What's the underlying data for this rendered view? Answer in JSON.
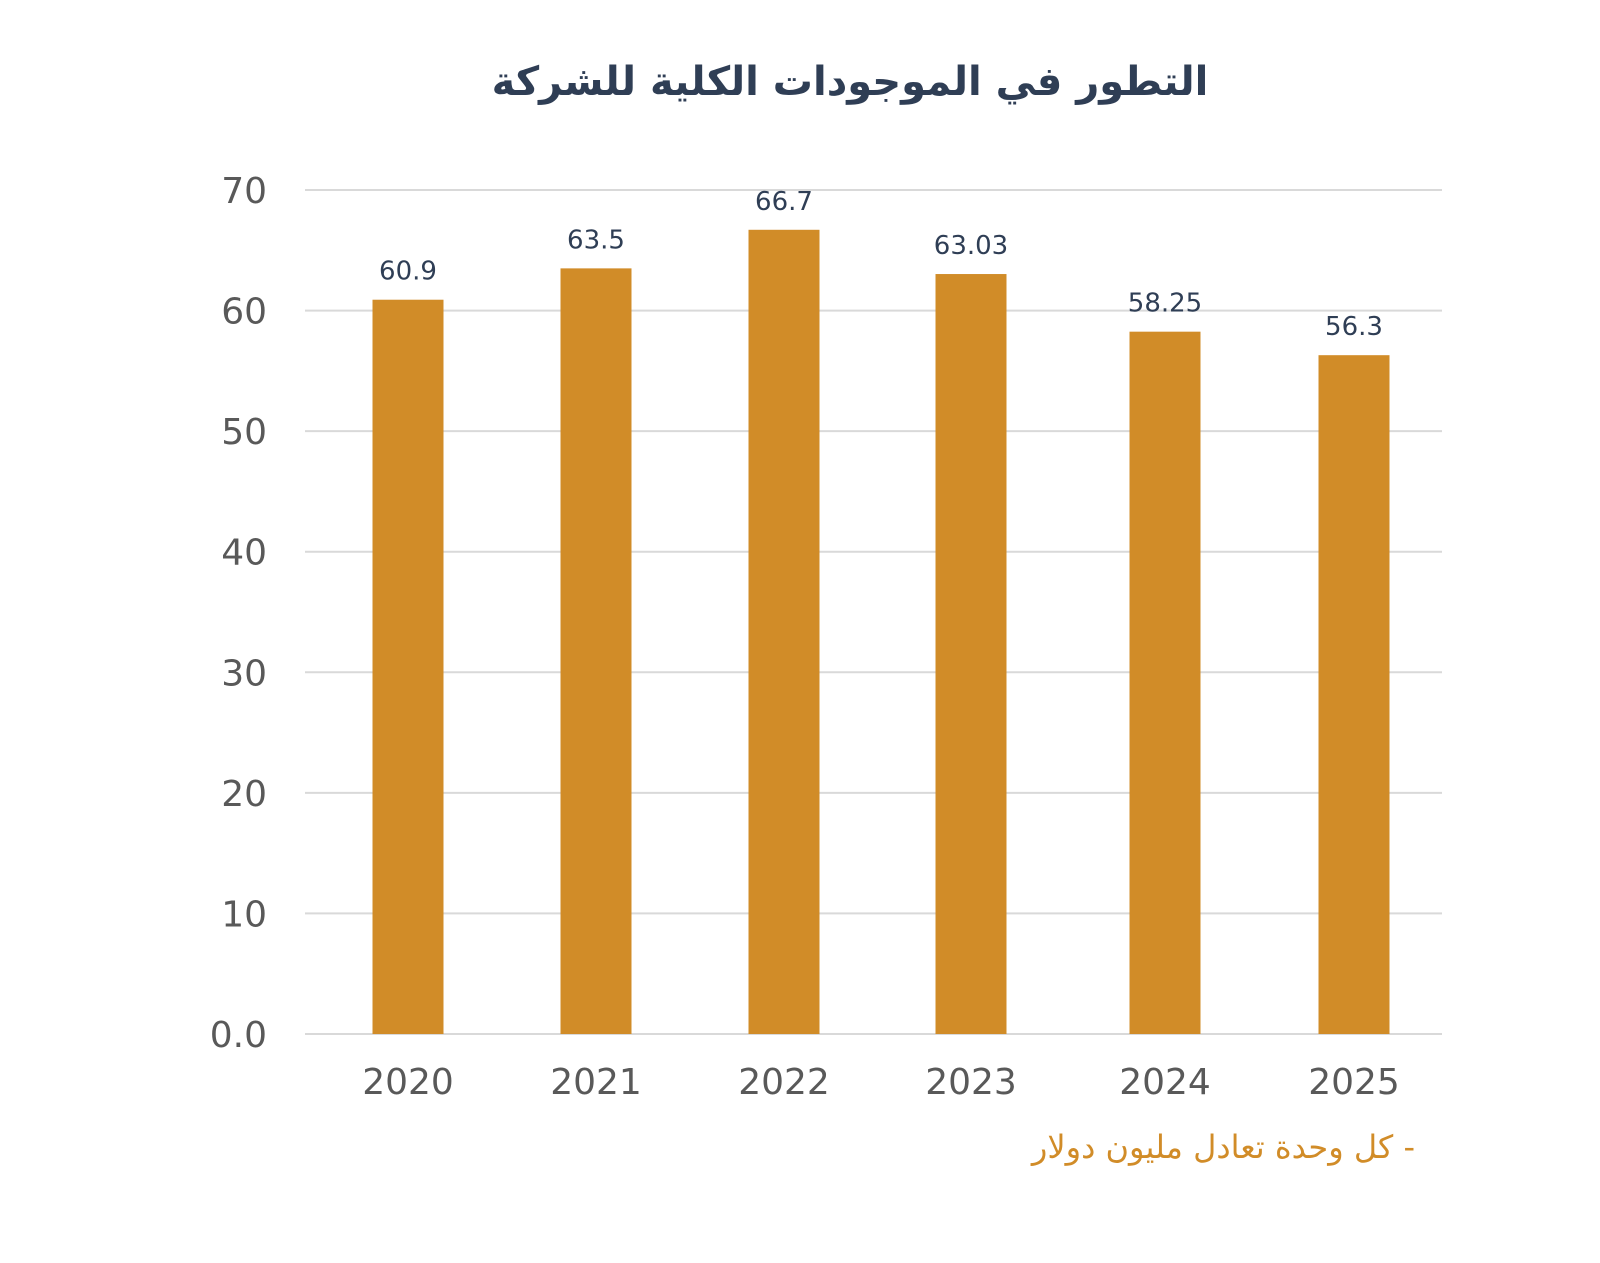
{
  "chart_data": {
    "type": "bar",
    "title": "التطور في الموجودات الكلية للشركة",
    "categories": [
      "2020",
      "2021",
      "2022",
      "2023",
      "2024",
      "2025"
    ],
    "values": [
      60.9,
      63.5,
      66.7,
      63.03,
      58.25,
      56.3
    ],
    "data_labels": [
      "60.9",
      "63.5",
      "66.7",
      "63.03",
      "58.25",
      "56.3"
    ],
    "y_ticks": [
      "0.0",
      "10",
      "20",
      "30",
      "40",
      "50",
      "60",
      "70"
    ],
    "ylim": [
      0,
      70
    ],
    "grid": true,
    "legend": "none",
    "xlabel": "",
    "ylabel": "",
    "note": "- كل وحدة تعادل مليون دولار",
    "colors": {
      "bar": "#d18c28",
      "title": "#2f3e55",
      "data_label": "#2f3e55",
      "axis_text": "#595959",
      "grid": "#d9d9d9",
      "note": "#d18c28"
    }
  }
}
